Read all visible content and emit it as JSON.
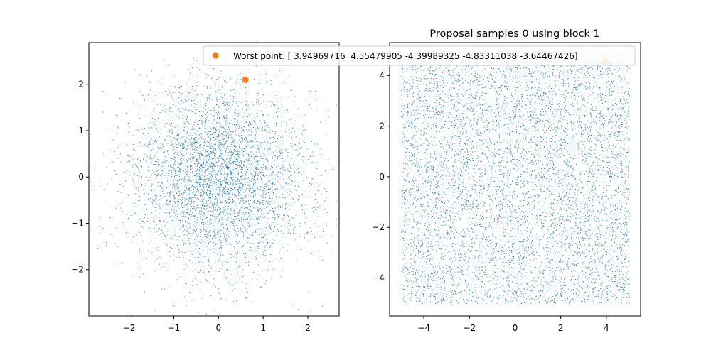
{
  "chart_data": [
    {
      "type": "scatter",
      "title": "",
      "xlabel": "",
      "ylabel": "",
      "xlim": [
        -2.9,
        2.7
      ],
      "ylim": [
        -3.0,
        2.9
      ],
      "xticks": [
        -2,
        -1,
        0,
        1,
        2
      ],
      "yticks": [
        -2,
        -1,
        0,
        1,
        2
      ],
      "xtick_labels": [
        "−2",
        "−1",
        "0",
        "1",
        "2"
      ],
      "ytick_labels": [
        "−2",
        "−1",
        "0",
        "1",
        "2"
      ],
      "grid": false,
      "samples": {
        "distribution": "standard normal",
        "count": 5000,
        "marker": "pixel",
        "color": "#1f77b4"
      },
      "highlight": {
        "x": 0.6,
        "y": 2.1,
        "color": "#ff7f0e"
      }
    },
    {
      "type": "scatter",
      "title": "Proposal samples 0 using block 1",
      "xlabel": "",
      "ylabel": "",
      "xlim": [
        -5.5,
        5.5
      ],
      "ylim": [
        -5.5,
        5.3
      ],
      "xticks": [
        -4,
        -2,
        0,
        2,
        4
      ],
      "yticks": [
        -4,
        -2,
        0,
        2,
        4
      ],
      "xtick_labels": [
        "−4",
        "−2",
        "0",
        "2",
        "4"
      ],
      "ytick_labels": [
        "−4",
        "−2",
        "0",
        "2",
        "4"
      ],
      "grid": false,
      "samples": {
        "distribution": "uniform",
        "range": [
          -5,
          5
        ],
        "count": 8000,
        "marker": "pixel",
        "color": "#1f77b4"
      },
      "highlight": {
        "x": 3.94969716,
        "y": 4.55479905,
        "color": "#ff7f0e"
      },
      "legend": {
        "placement": "upper-right",
        "entries": [
          {
            "label": "Worst point: [ 3.94969716  4.55479905 -4.39989325 -4.83311038 -3.64467426]",
            "color": "#ff7f0e",
            "marker": "circle"
          }
        ]
      }
    }
  ]
}
